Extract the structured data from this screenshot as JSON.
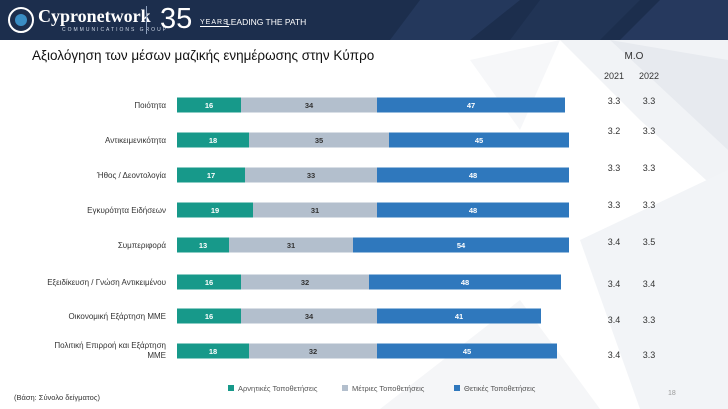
{
  "header": {
    "brand": "Cypronetwork",
    "brand_sub": "COMMUNICATIONS GROUP",
    "anniversary_number": "35",
    "anniversary_word": "YEARS",
    "tagline": "LEADING THE PATH"
  },
  "mo_panel": {
    "title": "Μ.Ο",
    "years": [
      "2021",
      "2022"
    ],
    "rows": [
      [
        "3.3",
        "3.3"
      ],
      [
        "3.2",
        "3.3"
      ],
      [
        "3.3",
        "3.3"
      ],
      [
        "3.3",
        "3.3"
      ],
      [
        "3.4",
        "3.5"
      ],
      [
        "3.4",
        "3.4"
      ],
      [
        "3.4",
        "3.3"
      ],
      [
        "3.4",
        "3.3"
      ]
    ]
  },
  "footnote": "(Βάση: Σύνολο δείγματος)",
  "page_number": "18",
  "chart_data": {
    "type": "bar",
    "orientation": "horizontal",
    "stacked": true,
    "title": "Αξιολόγηση των μέσων μαζικής ενημέρωσης στην Κύπρο",
    "categories": [
      "Ποιότητα",
      "Αντικειμενικότητα",
      "Ήθος / Δεοντολογία",
      "Εγκυρότητα Ειδήσεων",
      "Συμπεριφορά",
      "Εξειδίκευση / Γνώση Αντικειμένου",
      "Οικονομική Εξάρτηση ΜΜΕ",
      "Πολιτική Επιρροή και Εξάρτηση ΜΜΕ"
    ],
    "series": [
      {
        "name": "Αρνητικές Τοποθετήσεις",
        "color": "#17998a",
        "values": [
          16,
          18,
          17,
          19,
          13,
          16,
          16,
          18
        ]
      },
      {
        "name": "Μέτριες Τοποθετήσεις",
        "color": "#b3bfcd",
        "values": [
          34,
          35,
          33,
          31,
          31,
          32,
          34,
          32
        ]
      },
      {
        "name": "Θετικές Τοποθετήσεις",
        "color": "#2f78bd",
        "values": [
          47,
          45,
          48,
          48,
          54,
          48,
          41,
          45
        ]
      }
    ],
    "xlim": [
      0,
      100
    ],
    "data_labels": true,
    "grid": false,
    "legend_position": "bottom"
  }
}
